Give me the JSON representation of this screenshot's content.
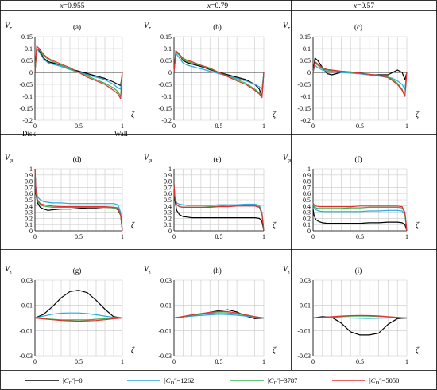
{
  "header": {
    "columns": [
      "x=0.955",
      "x=0.79",
      "x=0.57"
    ]
  },
  "legend": [
    {
      "label": "|CD′|=0",
      "color": "#000000"
    },
    {
      "label": "|CD′|=1262",
      "color": "#29a8e0"
    },
    {
      "label": "|CD′|=3787",
      "color": "#37b24d"
    },
    {
      "label": "|CD′|=5050",
      "color": "#e03131"
    }
  ],
  "colors": [
    "#000000",
    "#29a8e0",
    "#37b24d",
    "#e03131"
  ],
  "chart_data": [
    {
      "type": "line",
      "panel": "(a)",
      "ylabel": "Vr",
      "xlabel": "ζ",
      "xlim": [
        0,
        1
      ],
      "ylim": [
        -0.2,
        0.15
      ],
      "xticks": [
        "0",
        "0.5",
        "1"
      ],
      "yticks": [
        "0.15",
        "0.1",
        "0.05",
        "0",
        "-0.05",
        "-0.1",
        "-0.15",
        "-0.2"
      ],
      "annotations": [
        "Disk",
        "Wall"
      ],
      "x": [
        0,
        0.02,
        0.05,
        0.1,
        0.15,
        0.2,
        0.3,
        0.4,
        0.5,
        0.6,
        0.7,
        0.8,
        0.9,
        0.95,
        0.98,
        1
      ],
      "series": [
        {
          "name": "|CD′|=0",
          "values": [
            0,
            0.1,
            0.09,
            0.06,
            0.045,
            0.04,
            0.03,
            0.015,
            0.005,
            -0.005,
            -0.015,
            -0.025,
            -0.04,
            -0.05,
            -0.055,
            0
          ]
        },
        {
          "name": "|CD′|=1262",
          "values": [
            0,
            0.1,
            0.085,
            0.055,
            0.04,
            0.035,
            0.025,
            0.012,
            0,
            -0.01,
            -0.02,
            -0.03,
            -0.05,
            -0.065,
            -0.07,
            0
          ]
        },
        {
          "name": "|CD′|=3787",
          "values": [
            0,
            0.1,
            0.095,
            0.07,
            0.055,
            0.045,
            0.03,
            0.015,
            0,
            -0.015,
            -0.03,
            -0.045,
            -0.065,
            -0.08,
            -0.1,
            0
          ]
        },
        {
          "name": "|CD′|=5050",
          "values": [
            0,
            0.11,
            0.1,
            0.075,
            0.06,
            0.05,
            0.035,
            0.02,
            0,
            -0.02,
            -0.035,
            -0.05,
            -0.075,
            -0.09,
            -0.11,
            0
          ]
        }
      ]
    },
    {
      "type": "line",
      "panel": "(b)",
      "ylabel": "Vr",
      "xlabel": "ζ",
      "xlim": [
        0,
        1
      ],
      "ylim": [
        -0.2,
        0.15
      ],
      "xticks": [
        "0",
        "0.5",
        "1"
      ],
      "yticks": [
        "0.15",
        "0.1",
        "0.05",
        "0",
        "-0.05",
        "-0.1",
        "-0.15",
        "-0.2"
      ],
      "x": [
        0,
        0.02,
        0.05,
        0.1,
        0.15,
        0.2,
        0.3,
        0.4,
        0.5,
        0.6,
        0.7,
        0.8,
        0.9,
        0.95,
        0.98,
        1
      ],
      "series": [
        {
          "name": "|CD′|=0",
          "values": [
            0,
            0.09,
            0.08,
            0.05,
            0.04,
            0.035,
            0.025,
            0.012,
            0,
            -0.01,
            -0.02,
            -0.03,
            -0.05,
            -0.07,
            -0.1,
            0
          ]
        },
        {
          "name": "|CD′|=1262",
          "values": [
            0,
            0.08,
            0.065,
            0.04,
            0.03,
            0.025,
            0.015,
            0.005,
            -0.005,
            -0.015,
            -0.025,
            -0.035,
            -0.05,
            -0.06,
            -0.07,
            0
          ]
        },
        {
          "name": "|CD′|=3787",
          "values": [
            0,
            0.085,
            0.075,
            0.055,
            0.045,
            0.04,
            0.028,
            0.015,
            0,
            -0.015,
            -0.03,
            -0.045,
            -0.07,
            -0.085,
            -0.1,
            0
          ]
        },
        {
          "name": "|CD′|=5050",
          "values": [
            0,
            0.09,
            0.08,
            0.06,
            0.05,
            0.045,
            0.03,
            0.018,
            0,
            -0.018,
            -0.035,
            -0.05,
            -0.075,
            -0.09,
            -0.105,
            0
          ]
        }
      ]
    },
    {
      "type": "line",
      "panel": "(c)",
      "ylabel": "Vr",
      "xlabel": "ζ",
      "xlim": [
        0,
        1
      ],
      "ylim": [
        -0.2,
        0.15
      ],
      "xticks": [
        "0",
        "0.5",
        "1"
      ],
      "yticks": [
        "0.15",
        "0.1",
        "0.05",
        "0",
        "-0.05",
        "-0.1",
        "-0.15",
        "-0.2"
      ],
      "x": [
        0,
        0.02,
        0.05,
        0.1,
        0.15,
        0.2,
        0.3,
        0.4,
        0.5,
        0.6,
        0.7,
        0.8,
        0.85,
        0.9,
        0.95,
        0.98,
        1
      ],
      "series": [
        {
          "name": "|CD′|=0",
          "values": [
            0,
            0.06,
            0.05,
            0.02,
            -0.005,
            -0.01,
            0,
            0,
            -0.005,
            -0.01,
            -0.01,
            -0.01,
            0,
            0.01,
            0,
            -0.03,
            0
          ]
        },
        {
          "name": "|CD′|=1262",
          "values": [
            0,
            0.03,
            0.02,
            0.01,
            0.005,
            0.003,
            0,
            -0.003,
            -0.006,
            -0.01,
            -0.015,
            -0.02,
            -0.025,
            -0.035,
            -0.05,
            -0.07,
            0
          ]
        },
        {
          "name": "|CD′|=3787",
          "values": [
            0,
            0.04,
            0.03,
            0.015,
            0.01,
            0.007,
            0.004,
            0,
            -0.004,
            -0.008,
            -0.012,
            -0.02,
            -0.03,
            -0.045,
            -0.07,
            -0.1,
            0
          ]
        },
        {
          "name": "|CD′|=5050",
          "values": [
            0,
            0.045,
            0.035,
            0.02,
            0.012,
            0.01,
            0.005,
            0.002,
            -0.003,
            -0.008,
            -0.013,
            -0.022,
            -0.035,
            -0.05,
            -0.075,
            -0.1,
            0
          ]
        }
      ]
    },
    {
      "type": "line",
      "panel": "(d)",
      "ylabel": "Vφ",
      "xlabel": "ζ",
      "xlim": [
        0,
        1
      ],
      "ylim": [
        0,
        1
      ],
      "xticks": [
        "0",
        "0.5",
        "1"
      ],
      "yticks": [
        "1",
        "0.9",
        "0.8",
        "0.7",
        "0.6",
        "0.5",
        "0.4",
        "0.3",
        "0.2",
        "0.1",
        "0"
      ],
      "x": [
        0,
        0.01,
        0.03,
        0.06,
        0.1,
        0.15,
        0.2,
        0.3,
        0.4,
        0.5,
        0.6,
        0.7,
        0.8,
        0.9,
        0.95,
        0.98,
        1
      ],
      "series": [
        {
          "name": "|CD′|=0",
          "values": [
            1,
            0.6,
            0.45,
            0.38,
            0.35,
            0.33,
            0.34,
            0.35,
            0.35,
            0.36,
            0.37,
            0.37,
            0.38,
            0.37,
            0.34,
            0.25,
            0
          ]
        },
        {
          "name": "|CD′|=1262",
          "values": [
            1,
            0.7,
            0.55,
            0.5,
            0.47,
            0.46,
            0.45,
            0.45,
            0.44,
            0.44,
            0.44,
            0.44,
            0.44,
            0.44,
            0.42,
            0.3,
            0
          ]
        },
        {
          "name": "|CD′|=3787",
          "values": [
            1,
            0.62,
            0.48,
            0.42,
            0.4,
            0.39,
            0.38,
            0.38,
            0.38,
            0.38,
            0.38,
            0.38,
            0.38,
            0.37,
            0.36,
            0.25,
            0
          ]
        },
        {
          "name": "|CD′|=5050",
          "values": [
            1,
            0.65,
            0.5,
            0.44,
            0.42,
            0.41,
            0.4,
            0.39,
            0.39,
            0.39,
            0.39,
            0.39,
            0.39,
            0.38,
            0.37,
            0.26,
            0
          ]
        }
      ]
    },
    {
      "type": "line",
      "panel": "(e)",
      "ylabel": "Vφ",
      "xlabel": "ζ",
      "xlim": [
        0,
        1
      ],
      "ylim": [
        0,
        1
      ],
      "xticks": [
        "0",
        "0.5",
        "1"
      ],
      "yticks": [
        "1",
        "0.9",
        "0.8",
        "0.7",
        "0.6",
        "0.5",
        "0.4",
        "0.3",
        "0.2",
        "0.1",
        "0"
      ],
      "x": [
        0,
        0.01,
        0.03,
        0.06,
        0.1,
        0.15,
        0.2,
        0.3,
        0.4,
        0.5,
        0.6,
        0.7,
        0.8,
        0.9,
        0.95,
        0.98,
        1
      ],
      "series": [
        {
          "name": "|CD′|=0",
          "values": [
            0.75,
            0.5,
            0.33,
            0.26,
            0.23,
            0.22,
            0.21,
            0.21,
            0.21,
            0.21,
            0.21,
            0.21,
            0.21,
            0.21,
            0.2,
            0.15,
            0
          ]
        },
        {
          "name": "|CD′|=1262",
          "values": [
            0.75,
            0.55,
            0.45,
            0.43,
            0.42,
            0.41,
            0.41,
            0.41,
            0.41,
            0.42,
            0.42,
            0.42,
            0.43,
            0.43,
            0.41,
            0.3,
            0
          ]
        },
        {
          "name": "|CD′|=3787",
          "values": [
            0.75,
            0.52,
            0.42,
            0.39,
            0.38,
            0.38,
            0.38,
            0.38,
            0.39,
            0.4,
            0.41,
            0.41,
            0.41,
            0.41,
            0.39,
            0.28,
            0
          ]
        },
        {
          "name": "|CD′|=5050",
          "values": [
            0.75,
            0.53,
            0.42,
            0.39,
            0.38,
            0.38,
            0.38,
            0.38,
            0.38,
            0.39,
            0.39,
            0.4,
            0.4,
            0.4,
            0.38,
            0.27,
            0
          ]
        }
      ]
    },
    {
      "type": "line",
      "panel": "(f)",
      "ylabel": "Vφ",
      "xlabel": "ζ",
      "xlim": [
        0,
        1
      ],
      "ylim": [
        0,
        1
      ],
      "xticks": [
        "0",
        "0.5",
        "1"
      ],
      "yticks": [
        "1",
        "0.9",
        "0.8",
        "0.7",
        "0.6",
        "0.5",
        "0.4",
        "0.3",
        "0.2",
        "0.1",
        "0"
      ],
      "x": [
        0,
        0.01,
        0.03,
        0.06,
        0.1,
        0.15,
        0.2,
        0.3,
        0.4,
        0.5,
        0.6,
        0.7,
        0.8,
        0.9,
        0.95,
        0.98,
        1
      ],
      "series": [
        {
          "name": "|CD′|=0",
          "values": [
            0.35,
            0.25,
            0.18,
            0.15,
            0.13,
            0.12,
            0.12,
            0.12,
            0.12,
            0.12,
            0.13,
            0.13,
            0.14,
            0.14,
            0.13,
            0.1,
            0
          ]
        },
        {
          "name": "|CD′|=1262",
          "values": [
            0.45,
            0.38,
            0.34,
            0.32,
            0.31,
            0.31,
            0.31,
            0.31,
            0.31,
            0.31,
            0.32,
            0.32,
            0.33,
            0.33,
            0.32,
            0.25,
            0
          ]
        },
        {
          "name": "|CD′|=3787",
          "values": [
            0.45,
            0.4,
            0.37,
            0.36,
            0.36,
            0.36,
            0.36,
            0.36,
            0.37,
            0.37,
            0.38,
            0.38,
            0.38,
            0.38,
            0.37,
            0.28,
            0
          ]
        },
        {
          "name": "|CD′|=5050",
          "values": [
            0.45,
            0.42,
            0.4,
            0.39,
            0.39,
            0.39,
            0.39,
            0.39,
            0.39,
            0.4,
            0.4,
            0.4,
            0.4,
            0.4,
            0.39,
            0.3,
            0
          ]
        }
      ]
    },
    {
      "type": "line",
      "panel": "(g)",
      "ylabel": "Vz",
      "xlabel": "ζ",
      "xlim": [
        0,
        1
      ],
      "ylim": [
        -0.03,
        0.03
      ],
      "xticks": [
        "0",
        "0.5",
        "1"
      ],
      "yticks": [
        "0.03",
        "0.01",
        "-0.01",
        "-0.03"
      ],
      "x": [
        0,
        0.1,
        0.2,
        0.3,
        0.4,
        0.5,
        0.6,
        0.7,
        0.8,
        0.9,
        1
      ],
      "series": [
        {
          "name": "|CD′|=0",
          "values": [
            0,
            0.003,
            0.009,
            0.016,
            0.021,
            0.022,
            0.02,
            0.014,
            0.007,
            0.001,
            0
          ]
        },
        {
          "name": "|CD′|=1262",
          "values": [
            0,
            0.0015,
            0.003,
            0.0038,
            0.004,
            0.004,
            0.0035,
            0.0025,
            0.0015,
            0.0005,
            0
          ]
        },
        {
          "name": "|CD′|=3787",
          "values": [
            0,
            -0.0005,
            -0.001,
            -0.0015,
            -0.0015,
            -0.0015,
            -0.0015,
            -0.001,
            -0.0007,
            -0.0003,
            0
          ]
        },
        {
          "name": "|CD′|=5050",
          "values": [
            0,
            -0.0007,
            -0.0014,
            -0.002,
            -0.0023,
            -0.0025,
            -0.0023,
            -0.002,
            -0.0014,
            -0.0006,
            0
          ]
        }
      ]
    },
    {
      "type": "line",
      "panel": "(h)",
      "ylabel": "Vz",
      "xlabel": "ζ",
      "xlim": [
        0,
        1
      ],
      "ylim": [
        -0.03,
        0.03
      ],
      "xticks": [
        "0",
        "0.5",
        "1"
      ],
      "yticks": [
        "0.03",
        "0.01",
        "-0.01",
        "-0.03"
      ],
      "x": [
        0,
        0.1,
        0.2,
        0.3,
        0.4,
        0.5,
        0.6,
        0.7,
        0.8,
        0.9,
        1
      ],
      "series": [
        {
          "name": "|CD′|=0",
          "values": [
            0,
            0.0008,
            0.0018,
            0.003,
            0.0045,
            0.0058,
            0.0065,
            0.0048,
            0.0015,
            -0.0005,
            0
          ]
        },
        {
          "name": "|CD′|=1262",
          "values": [
            0,
            0.0008,
            0.0015,
            0.002,
            0.0025,
            0.003,
            0.0028,
            0.0022,
            0.0015,
            0.0006,
            0
          ]
        },
        {
          "name": "|CD′|=3787",
          "values": [
            0,
            0.001,
            0.002,
            0.003,
            0.0038,
            0.0042,
            0.004,
            0.0032,
            0.0022,
            0.001,
            0
          ]
        },
        {
          "name": "|CD′|=5050",
          "values": [
            0,
            0.0012,
            0.0025,
            0.0035,
            0.0045,
            0.0052,
            0.005,
            0.004,
            0.0025,
            0.001,
            0
          ]
        }
      ]
    },
    {
      "type": "line",
      "panel": "(i)",
      "ylabel": "Vz",
      "xlabel": "ζ",
      "xlim": [
        0,
        1
      ],
      "ylim": [
        -0.03,
        0.03
      ],
      "xticks": [
        "0",
        "0.5",
        "1"
      ],
      "yticks": [
        "0.03",
        "0.01",
        "-0.01",
        "-0.03"
      ],
      "x": [
        0,
        0.1,
        0.2,
        0.3,
        0.4,
        0.5,
        0.6,
        0.7,
        0.8,
        0.9,
        1
      ],
      "series": [
        {
          "name": "|CD′|=0",
          "values": [
            0,
            0.001,
            0.0005,
            -0.004,
            -0.011,
            -0.0135,
            -0.0135,
            -0.012,
            -0.005,
            -0.0005,
            0
          ]
        },
        {
          "name": "|CD′|=1262",
          "values": [
            0,
            0.0002,
            0.0003,
            0.0002,
            0,
            -0.0002,
            -0.0003,
            -0.0002,
            0,
            0.0001,
            0
          ]
        },
        {
          "name": "|CD′|=3787",
          "values": [
            0,
            0.0004,
            0.0008,
            0.0012,
            0.0015,
            0.0016,
            0.0015,
            0.0012,
            0.0008,
            0.0004,
            0
          ]
        },
        {
          "name": "|CD′|=5050",
          "values": [
            0,
            0.0005,
            0.001,
            0.0015,
            0.0018,
            0.002,
            0.0019,
            0.0016,
            0.001,
            0.0005,
            0
          ]
        }
      ]
    }
  ]
}
